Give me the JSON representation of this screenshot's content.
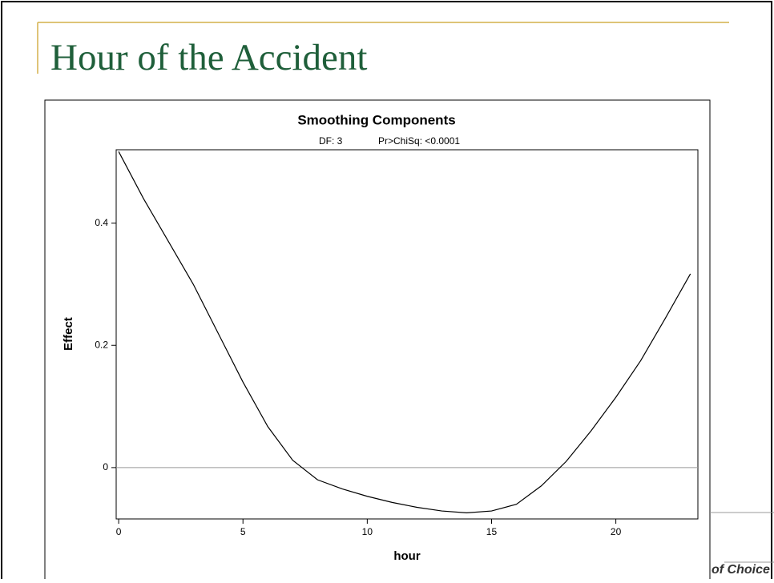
{
  "slide_title": "Hour of the Accident",
  "logo_text": "of Choice",
  "chart_data": {
    "type": "line",
    "title": "Smoothing Components",
    "subtitle": [
      "DF: 3",
      "Pr>ChiSq: <0.0001"
    ],
    "x_label": "hour",
    "y_label": "Effect",
    "x": [
      0,
      1,
      2,
      3,
      4,
      5,
      6,
      7,
      8,
      9,
      10,
      11,
      12,
      13,
      14,
      15,
      16,
      17,
      18,
      19,
      20,
      21,
      22,
      23
    ],
    "series": [
      {
        "color": "#000000",
        "values": [
          0.517,
          0.44,
          0.37,
          0.3,
          0.22,
          0.14,
          0.067,
          0.012,
          -0.02,
          -0.035,
          -0.047,
          -0.057,
          -0.065,
          -0.071,
          -0.074,
          -0.071,
          -0.06,
          -0.03,
          0.01,
          0.06,
          0.115,
          0.175,
          0.245,
          0.317
        ]
      }
    ],
    "xlim": [
      -0.1,
      23.3
    ],
    "ylim": [
      -0.084,
      0.52
    ],
    "xticks": [
      0,
      5,
      10,
      15,
      20
    ],
    "yticks": [
      0,
      0.2,
      0.4
    ],
    "reference_line": 0
  }
}
